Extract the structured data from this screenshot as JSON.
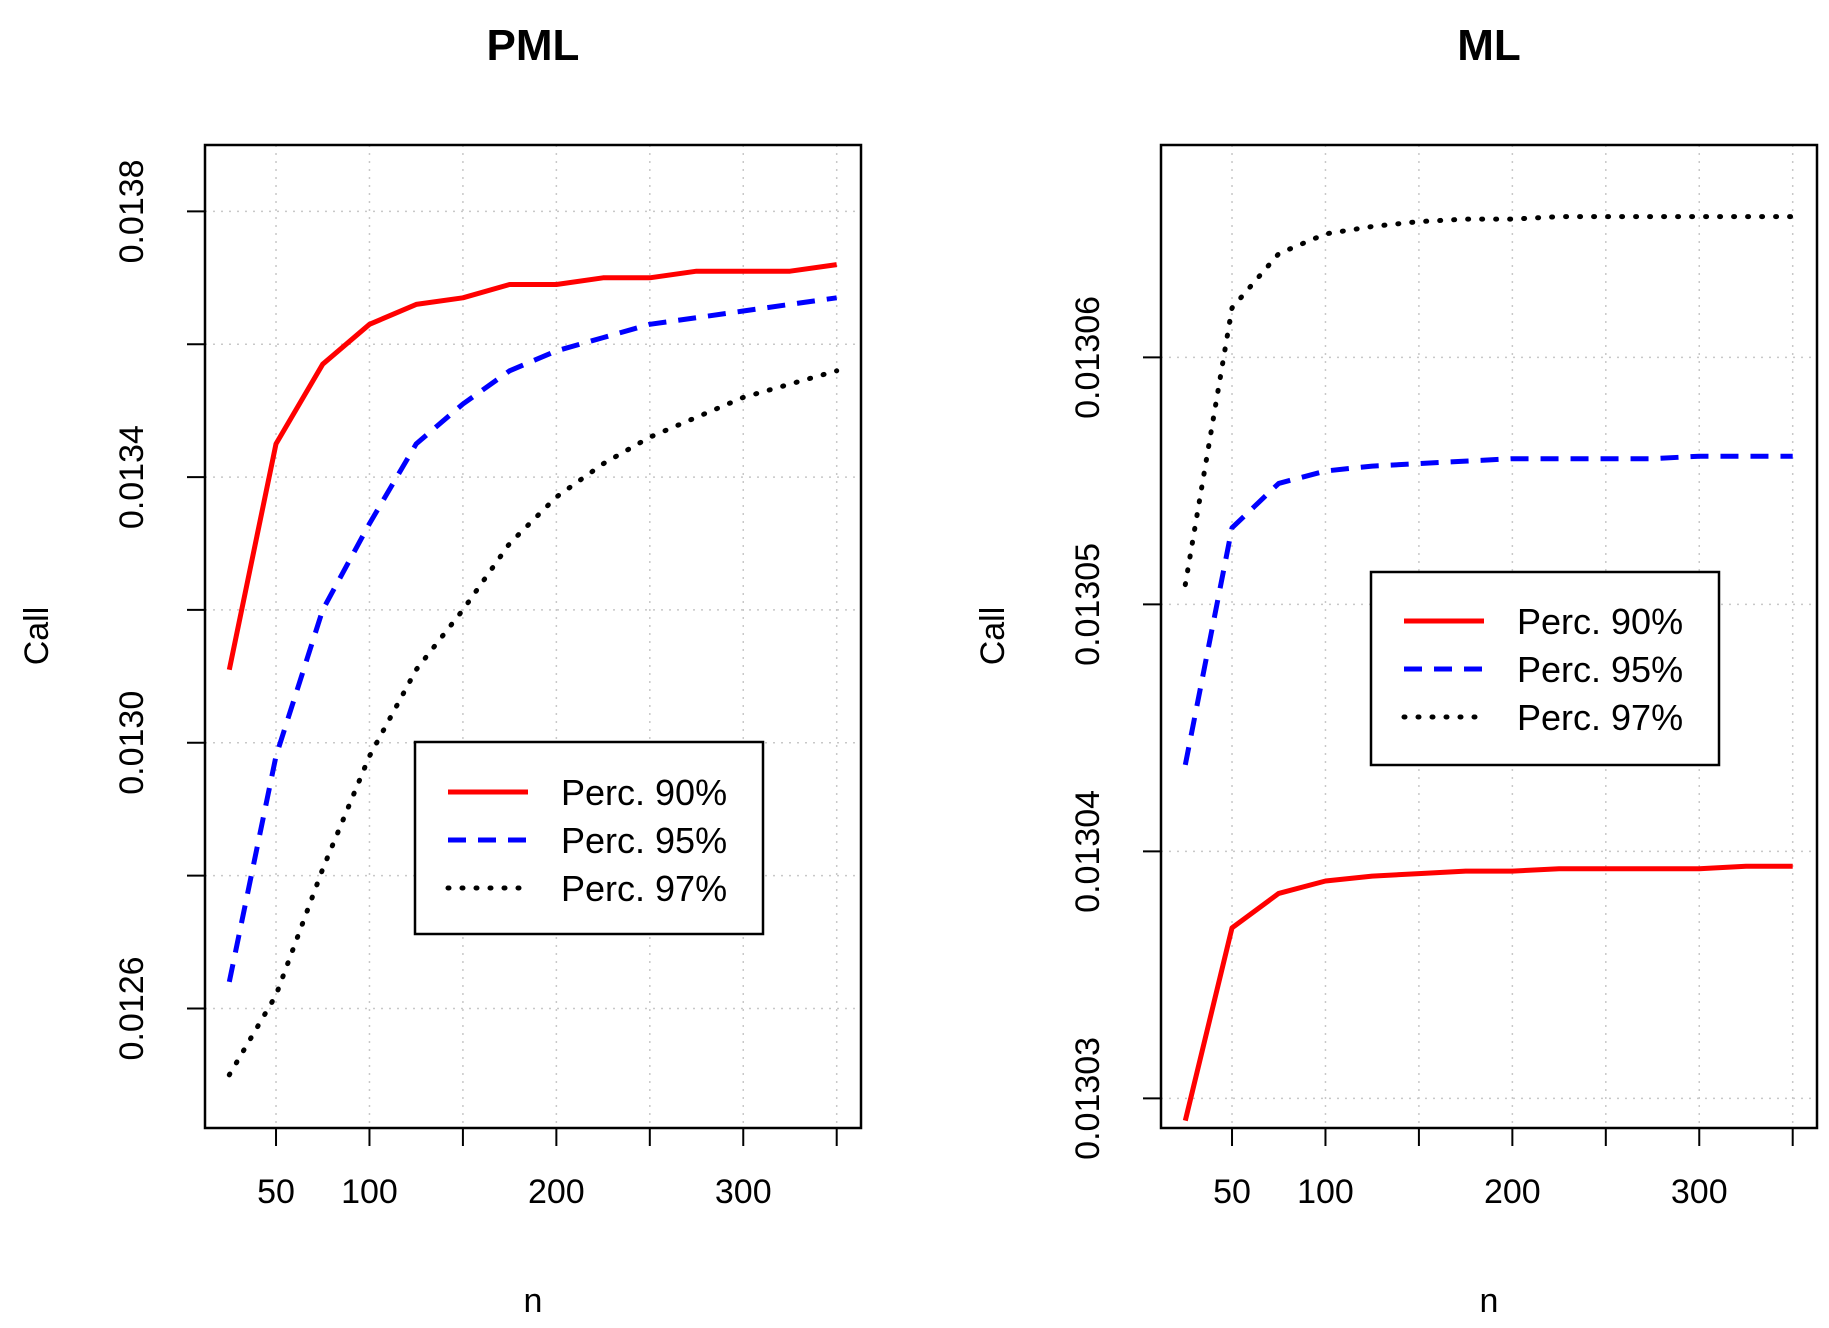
{
  "chart_data": [
    {
      "type": "line",
      "title": "PML",
      "xlabel": "n",
      "ylabel": "Call",
      "x": [
        25,
        50,
        75,
        100,
        125,
        150,
        175,
        200,
        225,
        250,
        275,
        300,
        325,
        350
      ],
      "xlim": [
        25,
        350
      ],
      "ylim": [
        0.01242,
        0.0139
      ],
      "xticks": [
        50,
        100,
        200,
        300
      ],
      "xticks_minor": [
        150,
        250,
        350
      ],
      "yticks": [
        {
          "value": 0.0126,
          "label": "0.0126"
        },
        {
          "value": 0.013,
          "label": "0.0130"
        },
        {
          "value": 0.0134,
          "label": "0.0134"
        },
        {
          "value": 0.0138,
          "label": "0.0138"
        }
      ],
      "yticks_minor": [
        0.0128,
        0.0132,
        0.0136
      ],
      "grid": true,
      "legend": "center-right",
      "series": [
        {
          "name": "Perc. 90%",
          "color": "#ff0000",
          "style": "solid",
          "values": [
            0.01311,
            0.01345,
            0.01357,
            0.01363,
            0.01366,
            0.01367,
            0.01369,
            0.01369,
            0.0137,
            0.0137,
            0.01371,
            0.01371,
            0.01371,
            0.01372
          ]
        },
        {
          "name": "Perc. 95%",
          "color": "#0000ff",
          "style": "dashed",
          "values": [
            0.01264,
            0.01298,
            0.0132,
            0.01333,
            0.01345,
            0.01351,
            0.01356,
            0.01359,
            0.01361,
            0.01363,
            0.01364,
            0.01365,
            0.01366,
            0.01367
          ]
        },
        {
          "name": "Perc. 97%",
          "color": "#000000",
          "style": "dotted",
          "values": [
            0.0125,
            0.01262,
            0.01281,
            0.01298,
            0.01311,
            0.0132,
            0.0133,
            0.01337,
            0.01342,
            0.01346,
            0.01349,
            0.01352,
            0.01354,
            0.01356
          ]
        }
      ]
    },
    {
      "type": "line",
      "title": "ML",
      "xlabel": "n",
      "ylabel": "Call",
      "x": [
        25,
        50,
        75,
        100,
        125,
        150,
        175,
        200,
        225,
        250,
        275,
        300,
        325,
        350
      ],
      "xlim": [
        25,
        350
      ],
      "ylim": [
        0.0130288,
        0.0130686
      ],
      "xticks": [
        50,
        100,
        200,
        300
      ],
      "xticks_minor": [
        150,
        250,
        350
      ],
      "yticks": [
        {
          "value": 0.01303,
          "label": "0.01303"
        },
        {
          "value": 0.01304,
          "label": "0.01304"
        },
        {
          "value": 0.01305,
          "label": "0.01305"
        },
        {
          "value": 0.01306,
          "label": "0.01306"
        }
      ],
      "yticks_minor": [],
      "grid": true,
      "legend": "center-right",
      "series": [
        {
          "name": "Perc. 90%",
          "color": "#ff0000",
          "style": "solid",
          "values": [
            0.0130291,
            0.0130369,
            0.0130383,
            0.0130388,
            0.013039,
            0.0130391,
            0.0130392,
            0.0130392,
            0.0130393,
            0.0130393,
            0.0130393,
            0.0130393,
            0.0130394,
            0.0130394
          ]
        },
        {
          "name": "Perc. 95%",
          "color": "#0000ff",
          "style": "dashed",
          "values": [
            0.0130435,
            0.0130531,
            0.0130549,
            0.0130554,
            0.0130556,
            0.0130557,
            0.0130558,
            0.0130559,
            0.0130559,
            0.0130559,
            0.0130559,
            0.013056,
            0.013056,
            0.013056
          ]
        },
        {
          "name": "Perc. 97%",
          "color": "#000000",
          "style": "dotted",
          "values": [
            0.0130508,
            0.013062,
            0.0130642,
            0.013065,
            0.0130653,
            0.0130655,
            0.0130656,
            0.0130656,
            0.0130657,
            0.0130657,
            0.0130657,
            0.0130657,
            0.0130657,
            0.0130657
          ]
        }
      ]
    }
  ]
}
